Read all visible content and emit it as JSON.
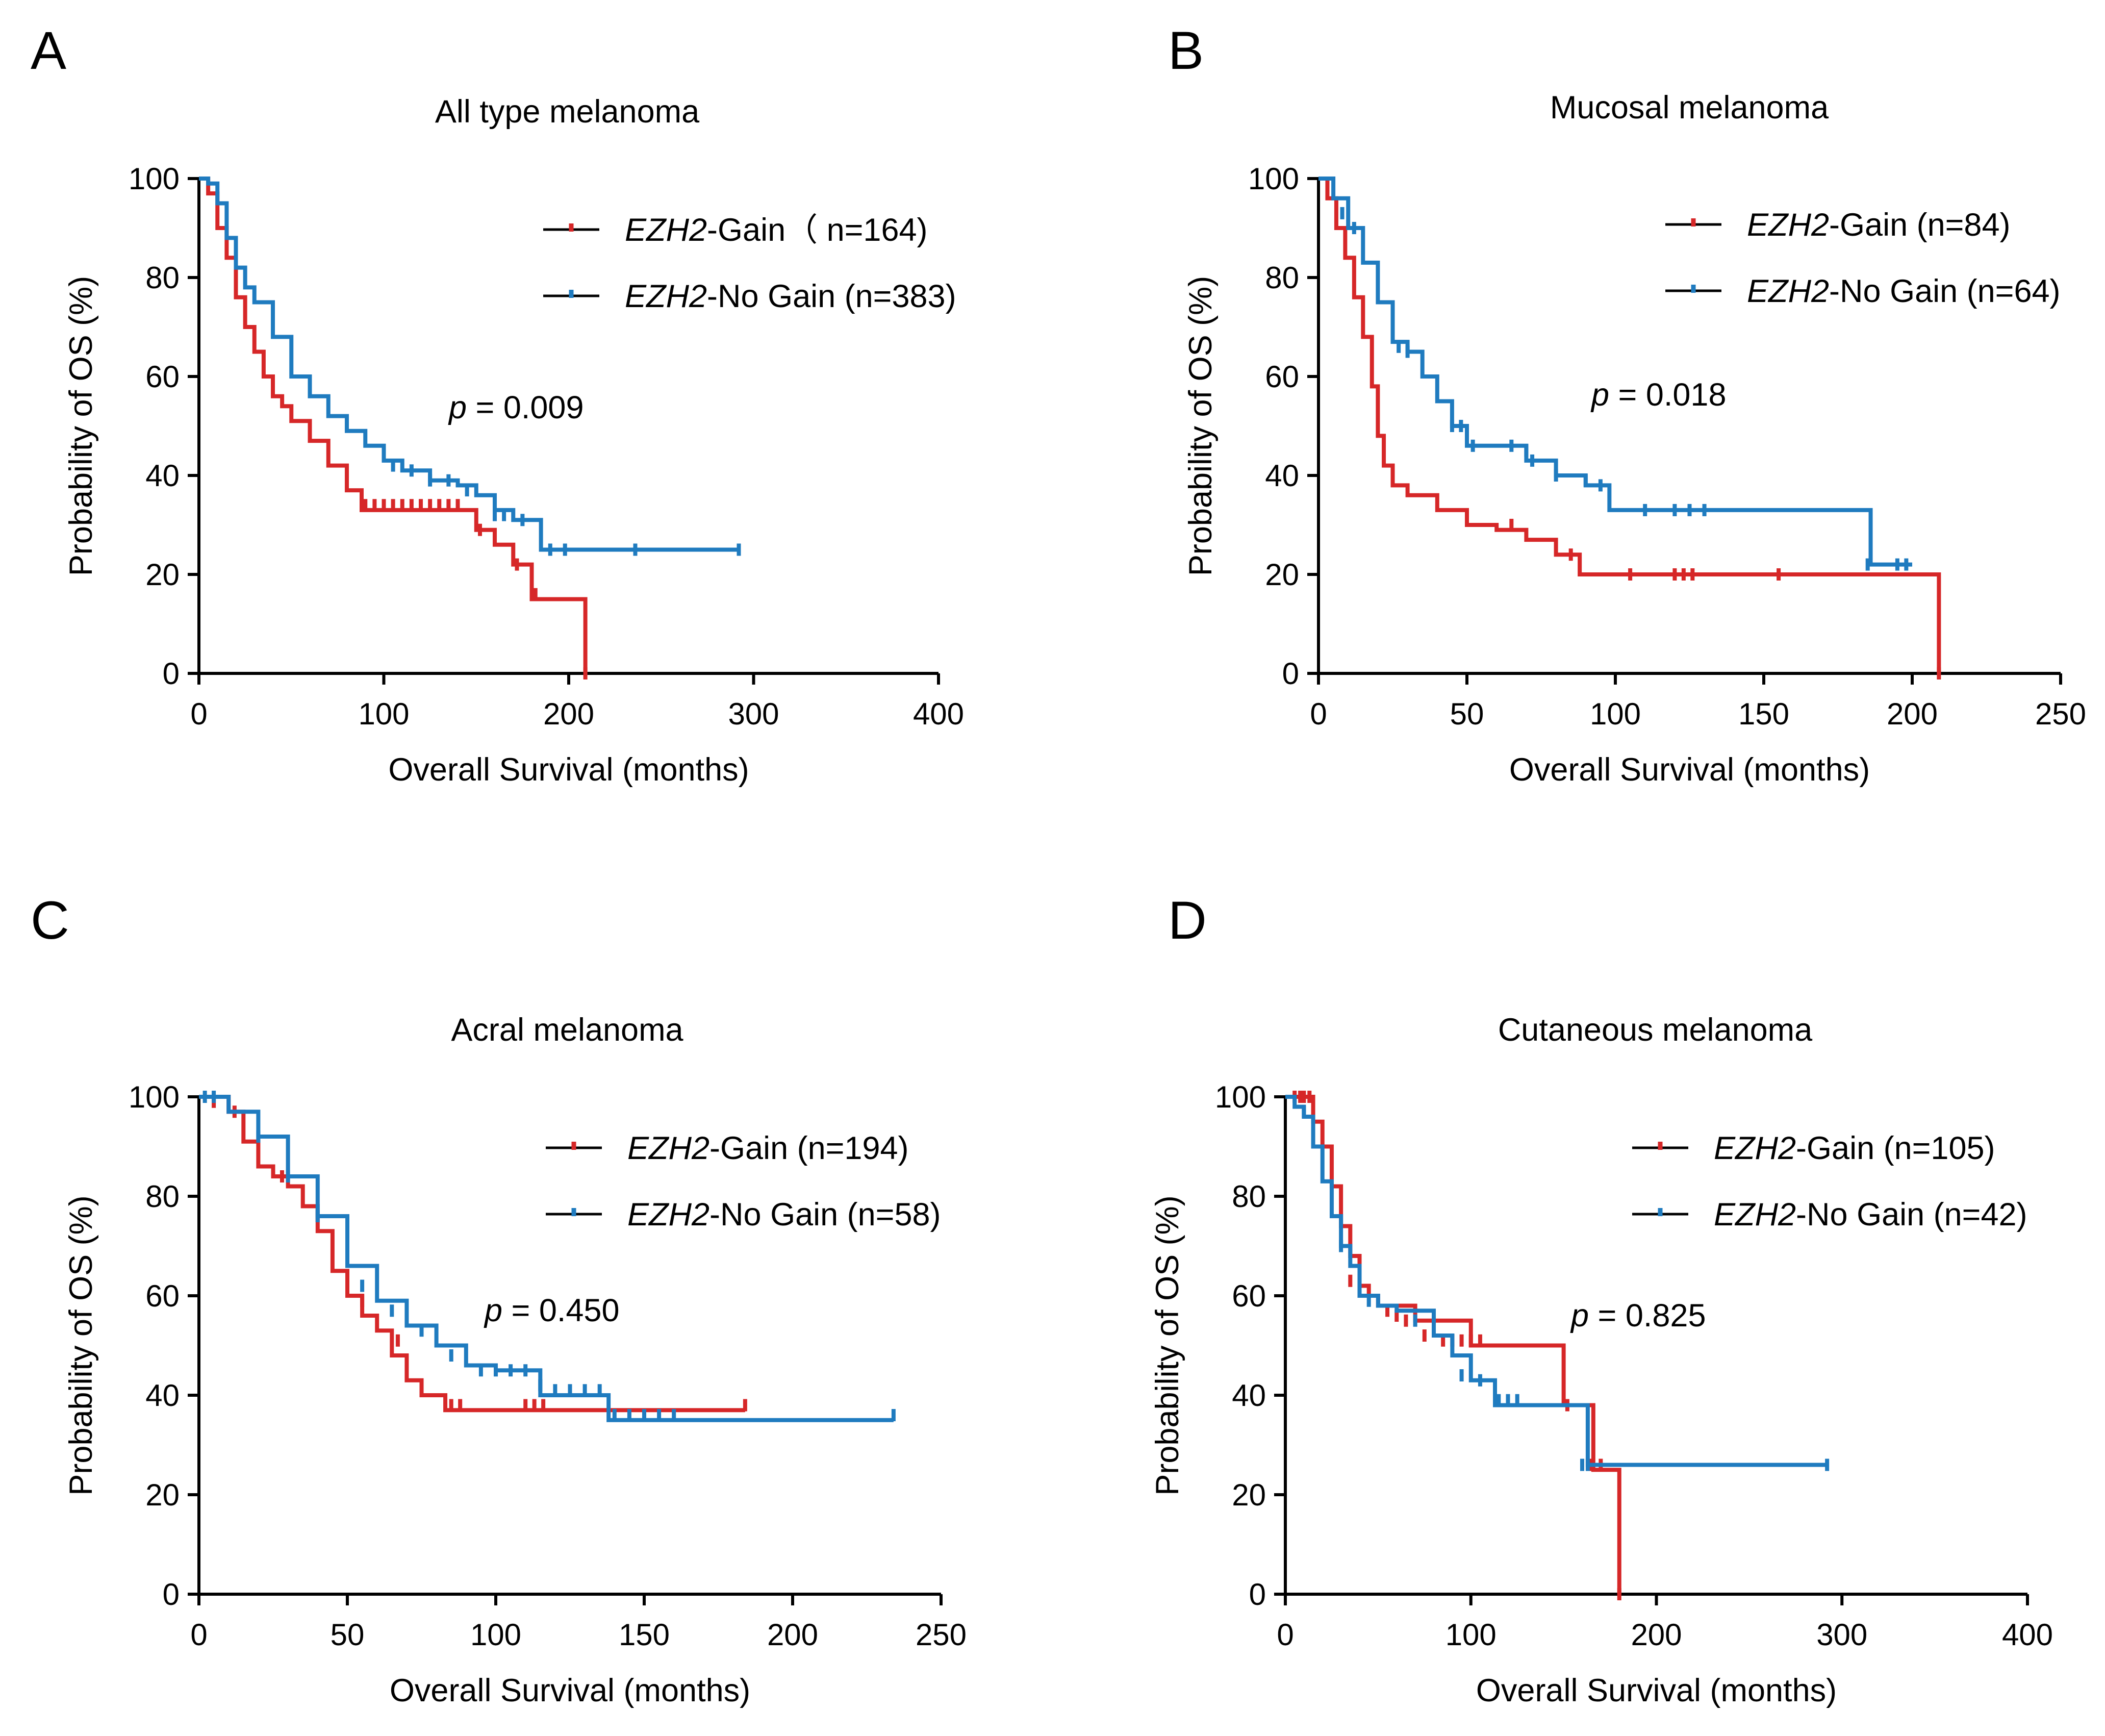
{
  "colors": {
    "gain": "#d62728",
    "nogain": "#1f7bbf",
    "line": "#000000"
  },
  "chart_data": [
    {
      "type": "line",
      "panel": "A",
      "title": "All type melanoma",
      "xlabel": "Overall Survival (months)",
      "ylabel": "Probability of OS (%)",
      "xlim": [
        0,
        400
      ],
      "ylim": [
        0,
        100
      ],
      "xticks": [
        0,
        100,
        200,
        300,
        400
      ],
      "xtick_labels": [
        "0",
        "100",
        "200",
        "300",
        "400"
      ],
      "yticks": [
        0,
        20,
        40,
        60,
        80,
        100
      ],
      "ytick_labels": [
        "0",
        "20",
        "40",
        "60",
        "80",
        "100"
      ],
      "pvalue": {
        "p": "p",
        "text": " = 0.009"
      },
      "series": [
        {
          "name": "Gain",
          "legend_gene": "EZH2",
          "legend_rest": "-Gain（ n=164)",
          "color_key": "gain",
          "x": [
            0,
            5,
            10,
            15,
            20,
            25,
            30,
            35,
            40,
            45,
            50,
            60,
            70,
            80,
            88,
            100,
            120,
            140,
            150,
            160,
            170,
            180,
            190,
            209
          ],
          "y": [
            100,
            97,
            90,
            84,
            76,
            70,
            65,
            60,
            56,
            54,
            51,
            47,
            42,
            37,
            33,
            33,
            33,
            33,
            29,
            26,
            22,
            15,
            15,
            0
          ],
          "censor_x": [
            90,
            95,
            100,
            105,
            110,
            115,
            120,
            125,
            130,
            135,
            140,
            152,
            172,
            182,
            209
          ],
          "censor_y": [
            34,
            34,
            34,
            34,
            34,
            34,
            34,
            34,
            34,
            34,
            34,
            29,
            22,
            16,
            0
          ]
        },
        {
          "name": "No Gain",
          "legend_gene": "EZH2",
          "legend_rest": "-No Gain (n=383)",
          "color_key": "nogain",
          "x": [
            0,
            5,
            10,
            15,
            20,
            25,
            30,
            40,
            50,
            60,
            70,
            80,
            90,
            100,
            110,
            125,
            140,
            150,
            160,
            170,
            185,
            293
          ],
          "y": [
            100,
            99,
            95,
            88,
            82,
            78,
            75,
            68,
            60,
            56,
            52,
            49,
            46,
            43,
            41,
            39,
            38,
            36,
            33,
            31,
            25,
            25
          ],
          "censor_x": [
            105,
            115,
            125,
            135,
            145,
            160,
            165,
            175,
            190,
            198,
            236,
            292
          ],
          "censor_y": [
            42,
            41,
            39,
            39,
            37,
            32,
            32,
            31,
            25,
            25,
            25,
            25
          ]
        }
      ]
    },
    {
      "type": "line",
      "panel": "B",
      "title": "Mucosal melanoma",
      "xlabel": "Overall Survival (months)",
      "ylabel": "Probability of OS (%)",
      "xlim": [
        0,
        250
      ],
      "ylim": [
        0,
        100
      ],
      "xticks": [
        0,
        50,
        100,
        150,
        200,
        250
      ],
      "xtick_labels": [
        "0",
        "50",
        "100",
        "150",
        "200",
        "250"
      ],
      "yticks": [
        0,
        20,
        40,
        60,
        80,
        100
      ],
      "ytick_labels": [
        "0",
        "20",
        "40",
        "60",
        "80",
        "100"
      ],
      "pvalue": {
        "p": "p",
        "text": " = 0.018"
      },
      "series": [
        {
          "name": "Gain",
          "legend_gene": "EZH2",
          "legend_rest": "-Gain (n=84)",
          "color_key": "gain",
          "x": [
            0,
            3,
            6,
            9,
            12,
            15,
            18,
            20,
            22,
            25,
            30,
            40,
            50,
            60,
            70,
            80,
            88,
            209
          ],
          "y": [
            100,
            96,
            90,
            84,
            76,
            68,
            58,
            48,
            42,
            38,
            36,
            33,
            30,
            29,
            27,
            24,
            20,
            0
          ],
          "censor_x": [
            65,
            85,
            105,
            120,
            123,
            126,
            155,
            209
          ],
          "censor_y": [
            30,
            24,
            20,
            20,
            20,
            20,
            20,
            0
          ]
        },
        {
          "name": "No Gain",
          "legend_gene": "EZH2",
          "legend_rest": "-No Gain (n=64)",
          "color_key": "nogain",
          "x": [
            0,
            5,
            10,
            15,
            20,
            25,
            30,
            35,
            40,
            45,
            50,
            70,
            80,
            90,
            98,
            186,
            200
          ],
          "y": [
            100,
            96,
            90,
            83,
            75,
            67,
            65,
            60,
            55,
            50,
            46,
            43,
            40,
            38,
            33,
            22,
            22
          ],
          "censor_x": [
            8,
            12,
            27,
            30,
            45,
            48,
            52,
            65,
            70,
            72,
            80,
            90,
            95,
            110,
            120,
            125,
            130,
            185,
            195,
            198
          ],
          "censor_y": [
            93,
            90,
            66,
            65,
            50,
            50,
            46,
            46,
            45,
            43,
            40,
            39,
            38,
            33,
            33,
            33,
            33,
            22,
            22,
            22
          ]
        }
      ]
    },
    {
      "type": "line",
      "panel": "C",
      "title": "Acral melanoma",
      "xlabel": "Overall Survival (months)",
      "ylabel": "Probability of OS (%)",
      "xlim": [
        0,
        250
      ],
      "ylim": [
        0,
        100
      ],
      "xticks": [
        0,
        50,
        100,
        150,
        200,
        250
      ],
      "xtick_labels": [
        "0",
        "50",
        "100",
        "150",
        "200",
        "250"
      ],
      "yticks": [
        0,
        20,
        40,
        60,
        80,
        100
      ],
      "ytick_labels": [
        "0",
        "20",
        "40",
        "60",
        "80",
        "100"
      ],
      "pvalue": {
        "p": "p",
        "text": " = 0.450"
      },
      "series": [
        {
          "name": "Gain",
          "legend_gene": "EZH2",
          "legend_rest": "-Gain (n=194)",
          "color_key": "gain",
          "x": [
            0,
            10,
            15,
            20,
            25,
            30,
            35,
            40,
            45,
            50,
            55,
            60,
            65,
            70,
            75,
            83,
            184
          ],
          "y": [
            100,
            97,
            91,
            86,
            84,
            82,
            78,
            73,
            65,
            60,
            56,
            53,
            48,
            43,
            40,
            37,
            37
          ],
          "censor_x": [
            5,
            12,
            28,
            40,
            55,
            67,
            75,
            85,
            88,
            110,
            113,
            116,
            184
          ],
          "censor_y": [
            99,
            97,
            84,
            76,
            59,
            51,
            42,
            38,
            38,
            38,
            38,
            38,
            38
          ]
        },
        {
          "name": "No Gain",
          "legend_gene": "EZH2",
          "legend_rest": "-No Gain (n=58)",
          "color_key": "nogain",
          "x": [
            0,
            10,
            20,
            30,
            40,
            50,
            60,
            70,
            80,
            90,
            100,
            115,
            138,
            234
          ],
          "y": [
            100,
            97,
            92,
            84,
            76,
            66,
            59,
            54,
            50,
            46,
            45,
            40,
            35,
            35
          ],
          "censor_x": [
            2,
            5,
            20,
            30,
            40,
            55,
            65,
            75,
            85,
            95,
            100,
            105,
            110,
            115,
            120,
            125,
            130,
            135,
            140,
            145,
            150,
            155,
            160,
            234
          ],
          "censor_y": [
            100,
            100,
            92,
            84,
            76,
            62,
            57,
            53,
            48,
            45,
            45,
            45,
            45,
            42,
            41,
            41,
            41,
            41,
            36,
            36,
            36,
            36,
            36,
            36
          ]
        }
      ]
    },
    {
      "type": "line",
      "panel": "D",
      "title": "Cutaneous melanoma",
      "xlabel": "Overall Survival (months)",
      "ylabel": "Probability of OS (%)",
      "xlim": [
        0,
        400
      ],
      "ylim": [
        0,
        100
      ],
      "xticks": [
        0,
        100,
        200,
        300,
        400
      ],
      "xtick_labels": [
        "0",
        "100",
        "200",
        "300",
        "400"
      ],
      "yticks": [
        0,
        20,
        40,
        60,
        80,
        100
      ],
      "ytick_labels": [
        "0",
        "20",
        "40",
        "60",
        "80",
        "100"
      ],
      "pvalue": {
        "p": "p",
        "text": " = 0.825"
      },
      "series": [
        {
          "name": "Gain",
          "legend_gene": "EZH2",
          "legend_rest": "-Gain (n=105)",
          "color_key": "gain",
          "x": [
            0,
            10,
            15,
            20,
            25,
            30,
            35,
            40,
            45,
            50,
            70,
            100,
            150,
            166,
            180
          ],
          "y": [
            100,
            100,
            95,
            90,
            82,
            74,
            68,
            62,
            60,
            58,
            55,
            50,
            38,
            25,
            0
          ],
          "censor_x": [
            5,
            8,
            10,
            13,
            35,
            55,
            60,
            65,
            75,
            85,
            90,
            95,
            100,
            105,
            152,
            165,
            170,
            180
          ],
          "censor_y": [
            100,
            100,
            100,
            100,
            63,
            57,
            56,
            55,
            52,
            51,
            51,
            51,
            51,
            51,
            38,
            26,
            26,
            0
          ]
        },
        {
          "name": "No Gain",
          "legend_gene": "EZH2",
          "legend_rest": "-No Gain (n=42)",
          "color_key": "nogain",
          "x": [
            0,
            5,
            10,
            15,
            20,
            25,
            30,
            35,
            40,
            50,
            60,
            80,
            90,
            100,
            113,
            160,
            163,
            293
          ],
          "y": [
            100,
            98,
            96,
            90,
            83,
            76,
            70,
            66,
            60,
            58,
            57,
            52,
            48,
            43,
            38,
            38,
            26,
            26
          ],
          "censor_x": [
            10,
            30,
            45,
            70,
            95,
            105,
            115,
            120,
            125,
            160,
            163,
            292
          ],
          "censor_y": [
            97,
            70,
            59,
            55,
            44,
            43,
            39,
            39,
            39,
            26,
            26,
            26
          ]
        }
      ]
    }
  ]
}
